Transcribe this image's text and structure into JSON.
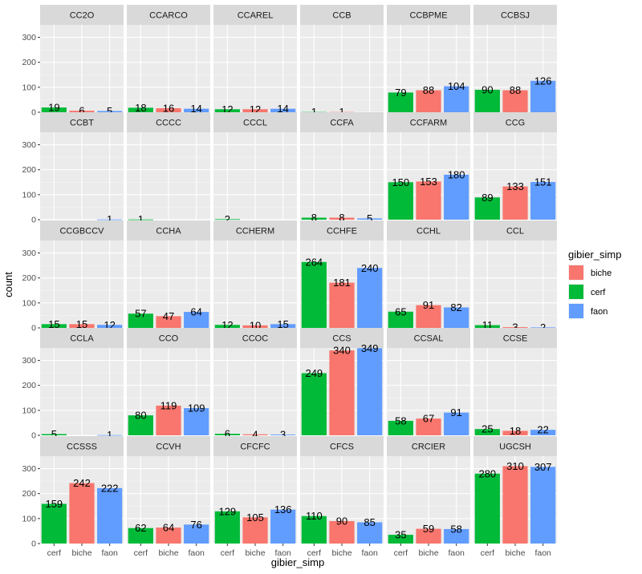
{
  "chart_data": {
    "type": "bar",
    "xlabel": "gibier_simp",
    "ylabel": "count",
    "ylim": [
      0,
      350
    ],
    "yticks": [
      0,
      100,
      200,
      300
    ],
    "categories": [
      "cerf",
      "biche",
      "faon"
    ],
    "legend": {
      "title": "gibier_simp",
      "placement": "right",
      "entries": [
        {
          "label": "biche",
          "color": "#F8766D"
        },
        {
          "label": "cerf",
          "color": "#00BA38"
        },
        {
          "label": "faon",
          "color": "#619CFF"
        }
      ]
    },
    "colors": {
      "cerf": "#00BA38",
      "biche": "#F8766D",
      "faon": "#619CFF"
    },
    "facets": [
      {
        "name": "CC2O",
        "values": [
          19,
          6,
          5
        ]
      },
      {
        "name": "CCARCO",
        "values": [
          18,
          16,
          14
        ]
      },
      {
        "name": "CCAREL",
        "values": [
          12,
          12,
          14
        ]
      },
      {
        "name": "CCB",
        "values": [
          1,
          1,
          null
        ]
      },
      {
        "name": "CCBPME",
        "values": [
          79,
          88,
          104
        ]
      },
      {
        "name": "CCBSJ",
        "values": [
          90,
          88,
          126
        ]
      },
      {
        "name": "CCBT",
        "values": [
          null,
          null,
          1
        ]
      },
      {
        "name": "CCCC",
        "values": [
          1,
          null,
          null
        ]
      },
      {
        "name": "CCCL",
        "values": [
          2,
          null,
          null
        ]
      },
      {
        "name": "CCFA",
        "values": [
          8,
          8,
          5
        ]
      },
      {
        "name": "CCFARM",
        "values": [
          150,
          153,
          180
        ]
      },
      {
        "name": "CCG",
        "values": [
          89,
          133,
          151
        ]
      },
      {
        "name": "CCGBCCV",
        "values": [
          15,
          15,
          12
        ]
      },
      {
        "name": "CCHA",
        "values": [
          57,
          47,
          64
        ]
      },
      {
        "name": "CCHERM",
        "values": [
          12,
          10,
          15
        ]
      },
      {
        "name": "CCHFE",
        "values": [
          264,
          181,
          240
        ]
      },
      {
        "name": "CCHL",
        "values": [
          65,
          91,
          82
        ]
      },
      {
        "name": "CCL",
        "values": [
          11,
          3,
          2
        ]
      },
      {
        "name": "CCLA",
        "values": [
          5,
          null,
          1
        ]
      },
      {
        "name": "CCO",
        "values": [
          80,
          119,
          109
        ]
      },
      {
        "name": "CCOC",
        "values": [
          6,
          4,
          3
        ]
      },
      {
        "name": "CCS",
        "values": [
          249,
          340,
          349
        ]
      },
      {
        "name": "CCSAL",
        "values": [
          58,
          67,
          91
        ]
      },
      {
        "name": "CCSE",
        "values": [
          25,
          18,
          22
        ]
      },
      {
        "name": "CCSSS",
        "values": [
          159,
          242,
          222
        ]
      },
      {
        "name": "CCVH",
        "values": [
          62,
          64,
          76
        ]
      },
      {
        "name": "CFCFC",
        "values": [
          129,
          105,
          136
        ]
      },
      {
        "name": "CFCS",
        "values": [
          110,
          90,
          85
        ]
      },
      {
        "name": "CRCIER",
        "values": [
          35,
          59,
          58
        ]
      },
      {
        "name": "UGCSH",
        "values": [
          280,
          310,
          307
        ]
      }
    ]
  }
}
